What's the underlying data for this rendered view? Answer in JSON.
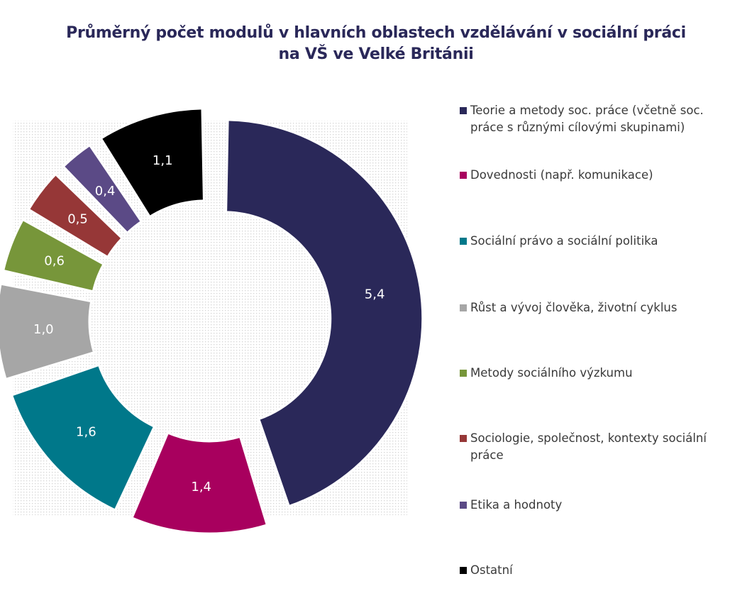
{
  "chart_data": {
    "type": "pie",
    "title_lines": [
      "Průměrný počet modulů v hlavních oblastech vzdělávání v sociální práci",
      "na VŠ ve Velké Británii"
    ],
    "categories": [
      "Teorie a metody soc. práce (včetně soc. práce s různými cílovými skupinami)",
      "Dovednosti (např. komunikace)",
      "Sociální právo a sociální politika",
      "Růst a vývoj člověka, životní cyklus",
      "Metody sociálního výzkumu",
      "Sociologie, společnost, kontexty sociální práce",
      "Etika a hodnoty",
      "Ostatní"
    ],
    "values": [
      5.4,
      1.4,
      1.6,
      1.0,
      0.6,
      0.5,
      0.4,
      1.1
    ],
    "value_labels": [
      "5,4",
      "1,4",
      "1,6",
      "1,0",
      "0,6",
      "0,5",
      "0,4",
      "1,1"
    ],
    "colors": [
      "#2a2859",
      "#a8005e",
      "#00788a",
      "#a6a6a6",
      "#77963a",
      "#963737",
      "#5b4a86",
      "#000000"
    ],
    "legend_placement": "right",
    "style": "exploded donut on dotted background"
  }
}
